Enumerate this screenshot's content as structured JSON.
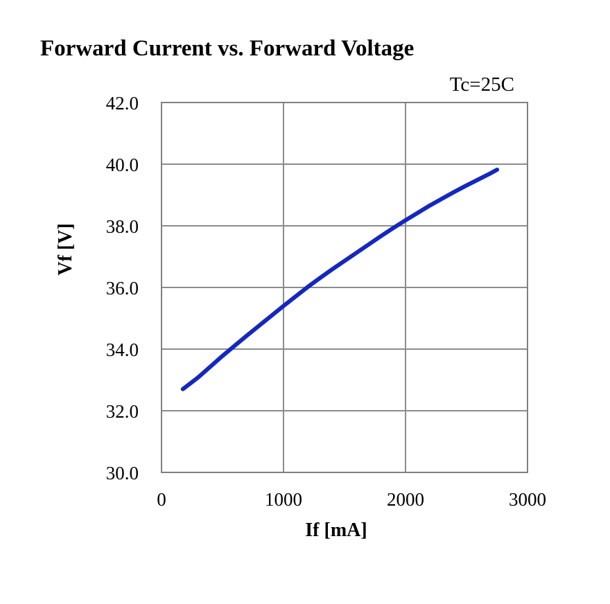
{
  "chart_data": {
    "type": "line",
    "title": "Forward Current vs. Forward Voltage",
    "annotation": "Tc=25C",
    "xlabel": "If [mA]",
    "ylabel": "Vf [V]",
    "xlim": [
      0,
      3000
    ],
    "ylim": [
      30.0,
      42.0
    ],
    "x_ticks": [
      0,
      1000,
      2000,
      3000
    ],
    "x_tick_labels": [
      "0",
      "1000",
      "2000",
      "3000"
    ],
    "y_ticks": [
      30.0,
      32.0,
      34.0,
      36.0,
      38.0,
      40.0,
      42.0
    ],
    "y_tick_labels": [
      "30.0",
      "32.0",
      "34.0",
      "36.0",
      "38.0",
      "40.0",
      "42.0"
    ],
    "grid": true,
    "legend": "none",
    "series": [
      {
        "color": "#1428c0",
        "x": [
          175,
          300,
          400,
          500,
          600,
          700,
          800,
          900,
          1000,
          1100,
          1200,
          1300,
          1400,
          1500,
          1600,
          1700,
          1800,
          1900,
          2000,
          2100,
          2200,
          2300,
          2400,
          2500,
          2600,
          2700,
          2750
        ],
        "y": [
          32.7,
          33.08,
          33.43,
          33.78,
          34.11,
          34.44,
          34.76,
          35.08,
          35.4,
          35.71,
          36.02,
          36.31,
          36.59,
          36.86,
          37.13,
          37.4,
          37.67,
          37.93,
          38.18,
          38.42,
          38.66,
          38.88,
          39.1,
          39.31,
          39.51,
          39.71,
          39.82
        ]
      }
    ]
  }
}
